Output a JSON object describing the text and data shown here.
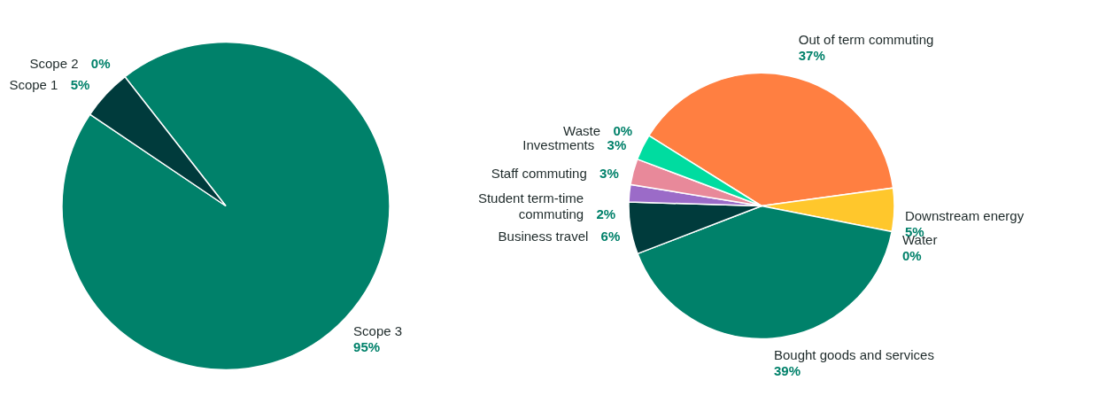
{
  "chart_data": [
    {
      "type": "pie",
      "categories": [
        "Scope 2",
        "Scope 3",
        "Scope 1"
      ],
      "values": [
        0,
        95,
        5
      ],
      "colors": [
        "#ffc72c",
        "#00816a",
        "#003b3c"
      ],
      "value_labels": [
        "0%",
        "95%",
        "5%"
      ]
    },
    {
      "type": "pie",
      "categories": [
        "Out of term commuting",
        "Downstream energy",
        "Water",
        "Bought goods and services",
        "Business travel",
        "Student term-time commuting",
        "Staff commuting",
        "Investments",
        "Waste"
      ],
      "values": [
        37,
        5,
        0,
        39,
        6,
        2,
        3,
        3,
        0
      ],
      "colors": [
        "#ff7f41",
        "#ffc72c",
        "#5bc2e7",
        "#00816a",
        "#003b3c",
        "#9b6bc8",
        "#e8899a",
        "#00dca0",
        "#a5c84a"
      ],
      "value_labels": [
        "37%",
        "5%",
        "0%",
        "39%",
        "6%",
        "2%",
        "3%",
        "3%",
        "0%"
      ]
    }
  ]
}
